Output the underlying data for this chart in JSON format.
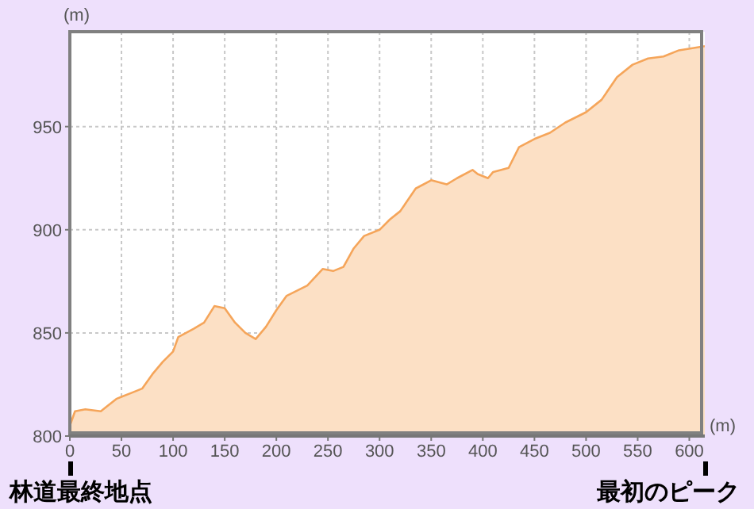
{
  "chart_data": {
    "type": "area",
    "xlabel": "(m)",
    "ylabel": "(m)",
    "x": [
      0,
      5,
      15,
      30,
      35,
      45,
      50,
      60,
      70,
      80,
      90,
      100,
      105,
      120,
      130,
      140,
      150,
      160,
      170,
      180,
      190,
      200,
      210,
      230,
      245,
      255,
      265,
      275,
      285,
      300,
      310,
      320,
      335,
      350,
      365,
      375,
      390,
      395,
      405,
      410,
      425,
      435,
      450,
      465,
      480,
      500,
      515,
      530,
      545,
      560,
      575,
      590,
      615
    ],
    "series": [
      {
        "color": "#f5a55a",
        "values": [
          805,
          812,
          813,
          812,
          814,
          818,
          819,
          821,
          823,
          830,
          836,
          841,
          848,
          852,
          855,
          863,
          862,
          855,
          850,
          847,
          853,
          861,
          868,
          873,
          881,
          880,
          882,
          891,
          897,
          900,
          905,
          909,
          920,
          924,
          922,
          925,
          929,
          927,
          925,
          928,
          930,
          940,
          944,
          947,
          952,
          957,
          963,
          974,
          980,
          983,
          984,
          987,
          989
        ]
      }
    ],
    "xlim": [
      0,
      615
    ],
    "ylim": [
      800,
      996
    ],
    "xticks": [
      0,
      50,
      100,
      150,
      200,
      250,
      300,
      350,
      400,
      450,
      500,
      550,
      600
    ],
    "yticks": [
      800,
      850,
      900,
      950
    ],
    "grid": true,
    "legend": false,
    "marker": "none",
    "line_style": "solid",
    "annotations": [
      "林道最終地点",
      "最初のピーク"
    ]
  }
}
